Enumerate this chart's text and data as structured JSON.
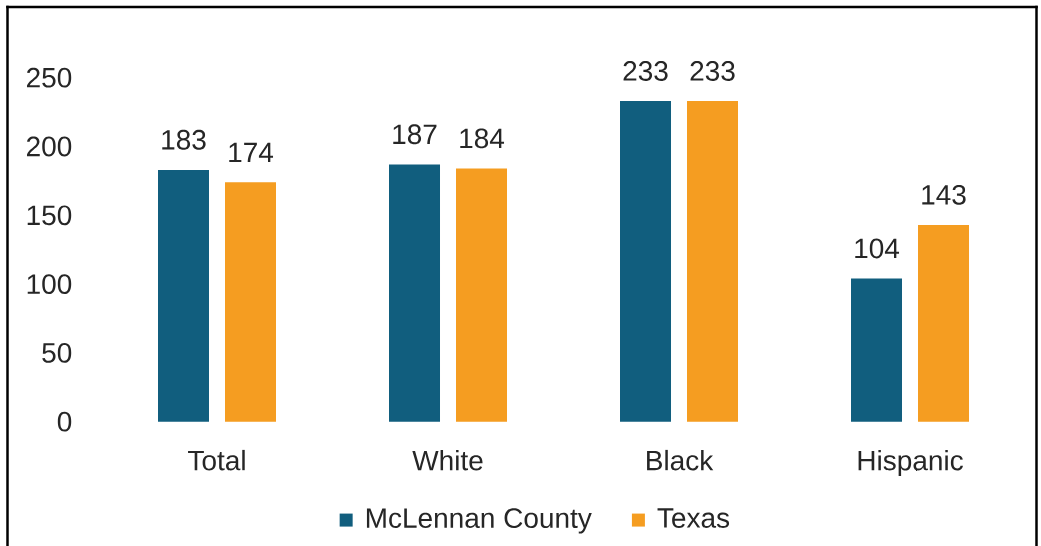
{
  "chart_data": {
    "type": "bar",
    "categories": [
      "Total",
      "White",
      "Black",
      "Hispanic"
    ],
    "series": [
      {
        "name": "McLennan County",
        "color": "#115e7e",
        "values": [
          183,
          187,
          233,
          104
        ]
      },
      {
        "name": "Texas",
        "color": "#f59d21",
        "values": [
          174,
          184,
          233,
          143
        ]
      }
    ],
    "ylim": [
      0,
      250
    ],
    "yticks": [
      0,
      50,
      100,
      150,
      200,
      250
    ],
    "data_labels": true,
    "legend": "bottom"
  }
}
